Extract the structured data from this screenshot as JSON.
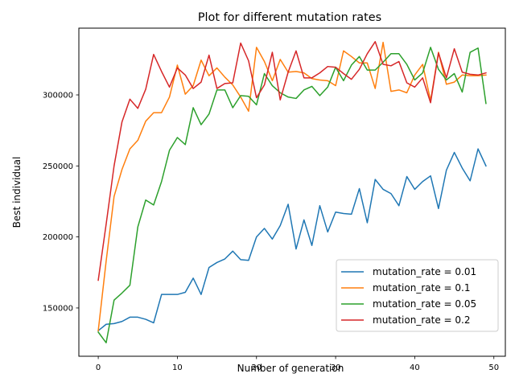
{
  "chart_data": {
    "type": "line",
    "title": "Plot for different mutation rates",
    "xlabel": "Number of generation",
    "ylabel": "Best individual",
    "xlim": [
      -2.45,
      51.45
    ],
    "ylim": [
      116000,
      347000
    ],
    "xticks": [
      0,
      10,
      20,
      30,
      40,
      50
    ],
    "yticks": [
      150000,
      200000,
      250000,
      300000
    ],
    "x_tick_labels": [
      "0",
      "10",
      "20",
      "30",
      "40",
      "50"
    ],
    "y_tick_labels": [
      "150000",
      "200000",
      "250000",
      "300000"
    ],
    "grid": false,
    "legend_position": "lower-right",
    "x": [
      0,
      1,
      2,
      3,
      4,
      5,
      6,
      7,
      8,
      9,
      10,
      11,
      12,
      13,
      14,
      15,
      16,
      17,
      18,
      19,
      20,
      21,
      22,
      23,
      24,
      25,
      26,
      27,
      28,
      29,
      30,
      31,
      32,
      33,
      34,
      35,
      36,
      37,
      38,
      39,
      40,
      41,
      42,
      43,
      44,
      45,
      46,
      47,
      48,
      49
    ],
    "series": [
      {
        "name": "mutation_rate = 0.01",
        "color": "#1f77b4",
        "values": [
          134000,
          138500,
          139000,
          140500,
          143500,
          143500,
          142000,
          139500,
          159500,
          159500,
          159500,
          161000,
          171000,
          159500,
          178500,
          182000,
          184500,
          190000,
          184000,
          183500,
          200000,
          206000,
          198500,
          208000,
          223000,
          191500,
          212000,
          194000,
          222000,
          203500,
          217500,
          216500,
          216000,
          234000,
          210000,
          240500,
          233500,
          230500,
          222000,
          242500,
          233500,
          239000,
          243000,
          220000,
          247000,
          259500,
          248500,
          239500,
          262000,
          250000
        ]
      },
      {
        "name": "mutation_rate = 0.1",
        "color": "#ff7f0e",
        "values": [
          134000,
          183000,
          228500,
          247500,
          262000,
          268000,
          281500,
          287500,
          287500,
          298500,
          321000,
          300500,
          306500,
          324500,
          313500,
          319000,
          312500,
          307000,
          298500,
          288500,
          333500,
          323500,
          310000,
          325000,
          316000,
          316500,
          315500,
          311500,
          310500,
          310000,
          306500,
          331000,
          327000,
          322500,
          322500,
          304500,
          337000,
          302500,
          303500,
          301500,
          314000,
          321500,
          296000,
          330000,
          307500,
          309000,
          314000,
          313500,
          313500,
          314000
        ]
      },
      {
        "name": "mutation_rate = 0.05",
        "color": "#2ca02c",
        "values": [
          133000,
          125500,
          155500,
          160500,
          166000,
          207000,
          226000,
          222500,
          239000,
          261000,
          270000,
          265000,
          291000,
          279000,
          286500,
          303500,
          303500,
          291000,
          299500,
          299000,
          293000,
          315000,
          306500,
          301500,
          298500,
          297500,
          303500,
          306000,
          299500,
          305500,
          319500,
          310000,
          321000,
          327000,
          317500,
          317500,
          323000,
          329000,
          329000,
          321500,
          310500,
          315500,
          333500,
          318000,
          310500,
          315000,
          302000,
          330000,
          333000,
          294000
        ]
      },
      {
        "name": "mutation_rate = 0.2",
        "color": "#d62728",
        "values": [
          169500,
          209000,
          250000,
          281000,
          297000,
          290500,
          304000,
          328500,
          316500,
          305500,
          319000,
          314000,
          304500,
          309000,
          328000,
          304500,
          308000,
          308500,
          336500,
          324000,
          298000,
          307000,
          330000,
          296500,
          316000,
          331000,
          312000,
          312000,
          315500,
          320000,
          319500,
          315000,
          311000,
          318000,
          329000,
          337500,
          321500,
          320500,
          323500,
          308500,
          305500,
          312000,
          294500,
          329500,
          312000,
          332500,
          316000,
          314500,
          314000,
          315500
        ]
      }
    ]
  }
}
